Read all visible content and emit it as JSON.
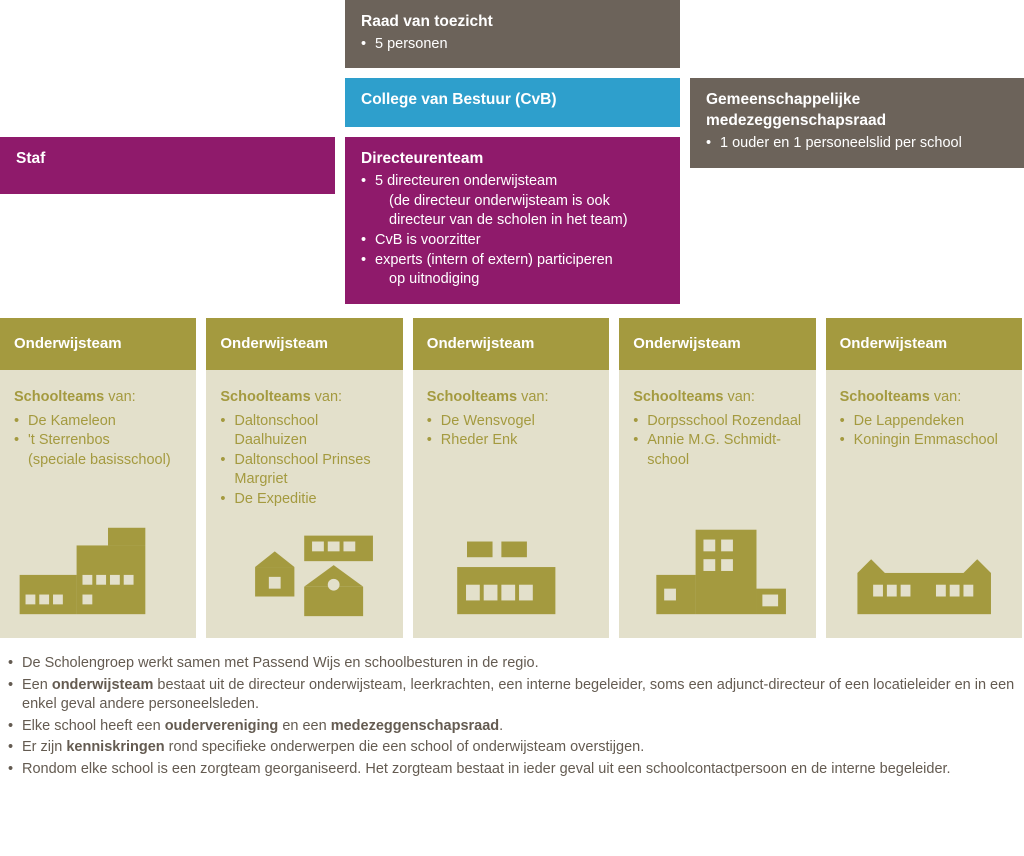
{
  "colors": {
    "brown": "#6c635a",
    "blue": "#2e9fcc",
    "magenta": "#8f1a6b",
    "olive": "#a49a3f",
    "beige": "#e3e0cb",
    "text": "#645b51",
    "oliveIcon": "#a49a3f",
    "white": "#ffffff"
  },
  "top": {
    "raad": {
      "title": "Raad van toezicht",
      "bullets": [
        "5 personen"
      ]
    },
    "cvb": {
      "title": "College van Bestuur (CvB)"
    },
    "gmr": {
      "title_l1": "Gemeenschappelijke",
      "title_l2": "medezeggenschapsraad",
      "bullets": [
        "1 ouder en 1 personeelslid per school"
      ]
    },
    "staf": {
      "title": "Staf"
    },
    "dir": {
      "title": "Directeurenteam",
      "bullets": [
        "5 directeuren onderwijsteam",
        "CvB is voorzitter",
        "experts (intern of extern) participeren"
      ],
      "sub0a": "(de directeur onderwijsteam is ook",
      "sub0b": "directeur van de scholen in het team)",
      "sub2": "op uitnodiging"
    }
  },
  "teamLabel": "Onderwijsteam",
  "schoolteamsWord": "Schoolteams",
  "vanWord": " van:",
  "teams": [
    {
      "schools": [
        "De Kameleon",
        "'t Sterrenbos"
      ],
      "paren": "(speciale basisschool)"
    },
    {
      "schools": [
        "Daltonschool Daalhuizen",
        "Daltonschool Prinses Margriet",
        "De Expeditie"
      ]
    },
    {
      "schools": [
        "De Wensvogel",
        "Rheder Enk"
      ]
    },
    {
      "schools": [
        "Dorpsschool Rozendaal",
        "Annie M.G. Schmidt-school"
      ]
    },
    {
      "schools": [
        "De Lappendeken",
        "Koningin Emmaschool"
      ]
    }
  ],
  "footer": [
    [
      [
        "",
        "De Scholengroep werkt samen met Passend Wijs en schoolbesturen in de regio."
      ]
    ],
    [
      [
        "",
        "Een "
      ],
      [
        "b",
        "onderwijsteam"
      ],
      [
        "",
        " bestaat uit de directeur onderwijsteam, leerkrachten, een interne begeleider, soms een adjunct-directeur of een locatieleider en in een enkel geval andere personeelsleden."
      ]
    ],
    [
      [
        "",
        "Elke school heeft een "
      ],
      [
        "b",
        "oudervereniging"
      ],
      [
        "",
        " en een "
      ],
      [
        "b",
        "medezeggenschapsraad"
      ],
      [
        "",
        "."
      ]
    ],
    [
      [
        "",
        "Er zijn "
      ],
      [
        "b",
        "kenniskringen"
      ],
      [
        "",
        " rond specifieke onderwerpen die een school of onderwijsteam overstijgen."
      ]
    ],
    [
      [
        "",
        "Rondom elke school is een zorgteam georganiseerd. Het zorgteam bestaat in ieder geval uit een schoolcontactpersoon en de interne begeleider."
      ]
    ]
  ],
  "buildingSvgs": {
    "b1": "<g fill='COL'><rect x='20' y='70' width='58' height='40'/><rect x='78' y='40' width='70' height='70'/><rect x='110' y='22' width='38' height='18'/><g fill='BG'><rect x='26' y='90' width='10' height='10'/><rect x='40' y='90' width='10' height='10'/><rect x='54' y='90' width='10' height='10'/><rect x='84' y='70' width='10' height='10'/><rect x='98' y='70' width='10' height='10'/><rect x='112' y='70' width='10' height='10'/><rect x='84' y='90' width='10' height='10'/><rect x='126' y='70' width='10' height='10'/></g></g>",
    "b2": "<g fill='COL'><rect x='100' y='30' width='70' height='26'/><g fill='BG'><rect x='108' y='36' width='12' height='10'/><rect x='124' y='36' width='12' height='10'/><rect x='140' y='36' width='12' height='10'/></g><polygon points='50,62 70,46 90,62'/><rect x='50' y='62' width='40' height='30'/><polygon points='100,82 130,60 160,82'/><rect x='100' y='82' width='60' height='30'/><circle cx='130' cy='80' r='6' fill='BG'/><rect x='64' y='72' width='12' height='12' fill='BG'/></g>",
    "b3": "<g fill='COL'><rect x='55' y='36' width='26' height='16'/><rect x='90' y='36' width='26' height='16'/><rect x='45' y='62' width='100' height='48'/><g fill='BG'><rect x='54' y='80' width='14' height='16'/><rect x='72' y='80' width='14' height='16'/><rect x='90' y='80' width='14' height='16'/><rect x='108' y='80' width='14' height='16'/></g></g>",
    "b4": "<g fill='COL'><rect x='78' y='24' width='62' height='86'/><rect x='38' y='70' width='40' height='40'/><rect x='140' y='84' width='30' height='26'/><g fill='BG'><rect x='86' y='34' width='12' height='12'/><rect x='104' y='34' width='12' height='12'/><rect x='86' y='54' width='12' height='12'/><rect x='104' y='54' width='12' height='12'/><rect x='46' y='84' width='12' height='12'/><rect x='146' y='90' width='16' height='12'/></g></g>",
    "b5": "<g fill='COL'><polygon points='32,68 46,54 60,68'/><polygon points='140,68 154,54 168,68'/><rect x='32' y='68' width='136' height='42'/><g fill='BG'><rect x='48' y='80' width='10' height='12'/><rect x='62' y='80' width='10' height='12'/><rect x='76' y='80' width='10' height='12'/><rect x='112' y='80' width='10' height='12'/><rect x='126' y='80' width='10' height='12'/><rect x='140' y='80' width='10' height='12'/></g></g>"
  }
}
